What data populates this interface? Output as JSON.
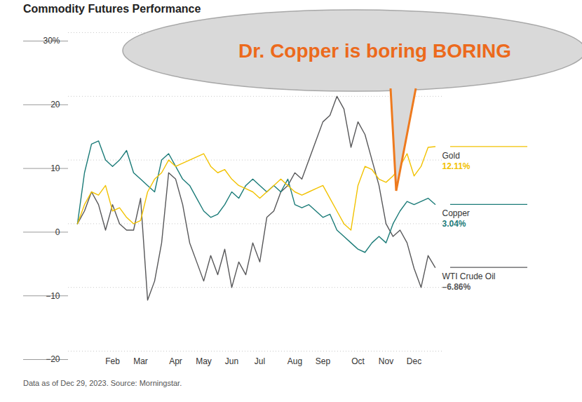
{
  "chart_data": {
    "type": "line",
    "title": "Commodity Futures Performance",
    "caption": "Data as of Dec 29, 2023. Source: Morningstar.",
    "annotation": "Dr. Copper is boring BORING",
    "categories": [
      null,
      null,
      null,
      null,
      null,
      "Feb",
      null,
      null,
      null,
      "Mar",
      null,
      null,
      null,
      null,
      "Apr",
      null,
      null,
      null,
      "May",
      null,
      null,
      null,
      "Jun",
      null,
      null,
      null,
      "Jul",
      null,
      null,
      null,
      null,
      "Aug",
      null,
      null,
      null,
      "Sep",
      null,
      null,
      null,
      null,
      "Oct",
      null,
      null,
      null,
      "Nov",
      null,
      null,
      null,
      "Dec",
      null,
      null,
      null
    ],
    "series": [
      {
        "name": "Gold",
        "color": "#f2c200",
        "values": [
          0,
          3,
          5,
          4.5,
          6,
          2,
          2.5,
          1,
          0,
          0.5,
          5,
          7,
          8,
          10,
          9,
          9.5,
          10,
          10.5,
          11,
          9,
          8,
          8.5,
          7,
          6,
          5.5,
          5,
          4,
          5,
          6,
          7,
          6,
          5,
          4.5,
          5,
          5.5,
          6,
          4,
          2,
          0,
          -1,
          6,
          9,
          8.5,
          7,
          6.5,
          7.5,
          9,
          11,
          7.5,
          9,
          12,
          12.11
        ],
        "value_labels": [
          null,
          null,
          null,
          null,
          null,
          null,
          null,
          null,
          null,
          null,
          null,
          null,
          null,
          null,
          null,
          null,
          null,
          null,
          null,
          null,
          null,
          null,
          null,
          null,
          null,
          null,
          null,
          null,
          null,
          null,
          null,
          null,
          null,
          null,
          null,
          null,
          null,
          null,
          null,
          null,
          null,
          null,
          null,
          null,
          null,
          null,
          null,
          null,
          null,
          null,
          null,
          "12.11%"
        ]
      },
      {
        "name": "Copper",
        "color": "#1b7b78",
        "values": [
          0,
          8,
          12.5,
          13,
          10,
          9,
          10,
          11.5,
          8,
          7,
          6,
          5,
          10,
          11,
          9,
          7,
          6,
          4,
          2,
          1,
          1.5,
          3,
          5,
          4,
          6,
          7,
          6,
          5,
          6,
          5,
          7,
          3,
          2.5,
          3,
          2,
          1,
          1.5,
          -1,
          -2,
          -3,
          -4,
          -4.5,
          -3,
          -2,
          -3,
          0,
          2,
          3.5,
          3,
          3.5,
          4,
          3.04
        ],
        "value_labels": [
          null,
          null,
          null,
          null,
          null,
          null,
          null,
          null,
          null,
          null,
          null,
          null,
          null,
          null,
          null,
          null,
          null,
          null,
          null,
          null,
          null,
          null,
          null,
          null,
          null,
          null,
          null,
          null,
          null,
          null,
          null,
          null,
          null,
          null,
          null,
          null,
          null,
          null,
          null,
          null,
          null,
          null,
          null,
          null,
          null,
          null,
          null,
          null,
          null,
          null,
          null,
          "3.04%"
        ]
      },
      {
        "name": "WTI Crude Oil",
        "color": "#58585a",
        "values": [
          0,
          2,
          5,
          3,
          -1,
          3,
          0,
          -1,
          -1,
          4,
          -12,
          -9,
          -3,
          8,
          7,
          3,
          -3,
          -6,
          -9,
          -5,
          -8,
          -4,
          -10,
          -6,
          -8,
          -3,
          -6,
          1,
          2,
          5,
          6,
          8,
          7,
          10,
          13,
          16,
          17,
          20,
          18,
          12,
          16,
          14,
          10,
          6,
          0,
          -2,
          -1,
          -3,
          -7,
          -10,
          -5,
          -6.86
        ],
        "value_labels": [
          null,
          null,
          null,
          null,
          null,
          null,
          null,
          null,
          null,
          null,
          null,
          null,
          null,
          null,
          null,
          null,
          null,
          null,
          null,
          null,
          null,
          null,
          null,
          null,
          null,
          null,
          null,
          null,
          null,
          null,
          null,
          null,
          null,
          null,
          null,
          null,
          null,
          null,
          null,
          null,
          null,
          null,
          null,
          null,
          null,
          null,
          null,
          null,
          null,
          null,
          null,
          "–6.86%"
        ]
      }
    ],
    "ylim": [
      -20,
      30
    ],
    "yticks": [
      {
        "value": 30,
        "label": "30%"
      },
      20,
      10,
      0,
      -10,
      -20
    ],
    "grid": true,
    "legend": "right"
  }
}
